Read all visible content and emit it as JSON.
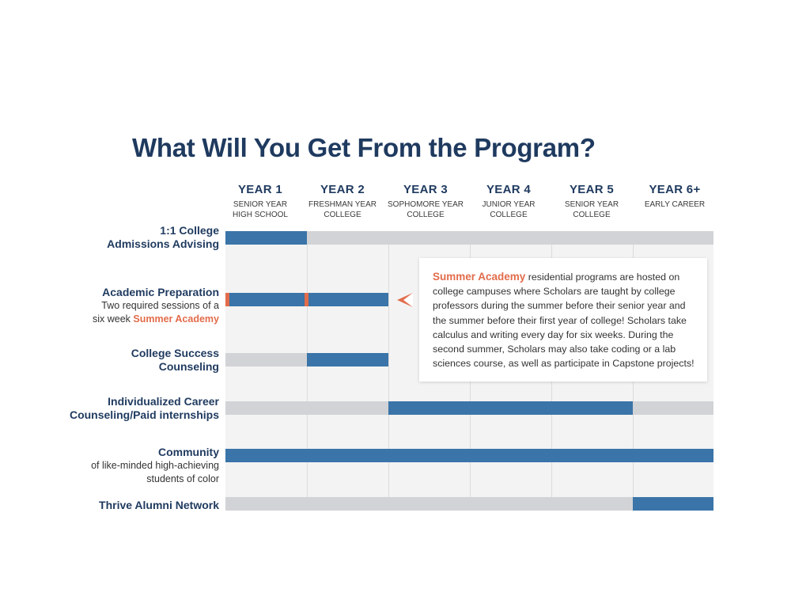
{
  "title": "What Will You Get From the Program?",
  "colors": {
    "navy": "#1f3a5f",
    "bar_blue": "#3a74a8",
    "track_gray": "#d2d3d6",
    "accent_orange": "#e26c4b",
    "grid_background": "#f3f3f3"
  },
  "years": [
    {
      "label": "YEAR 1",
      "sub1": "SENIOR YEAR",
      "sub2": "HIGH SCHOOL"
    },
    {
      "label": "YEAR 2",
      "sub1": "FRESHMAN YEAR",
      "sub2": "COLLEGE"
    },
    {
      "label": "YEAR 3",
      "sub1": "SOPHOMORE YEAR",
      "sub2": "COLLEGE"
    },
    {
      "label": "YEAR 4",
      "sub1": "JUNIOR YEAR",
      "sub2": "COLLEGE"
    },
    {
      "label": "YEAR 5",
      "sub1": "SENIOR YEAR",
      "sub2": "COLLEGE"
    },
    {
      "label": "YEAR 6+",
      "sub1": "EARLY CAREER",
      "sub2": ""
    }
  ],
  "rows": {
    "advising": {
      "line1": "1:1 College",
      "line2": "Admissions Advising",
      "active_years": [
        1,
        1
      ]
    },
    "academic": {
      "title": "Academic Preparation",
      "desc1": "Two required sessions of a",
      "desc2_prefix": "six week ",
      "desc2_accent": "Summer Academy",
      "active_years": [
        1,
        2
      ],
      "summer_academy_sessions": 2
    },
    "success": {
      "line1": "College Success",
      "line2": "Counseling",
      "active_years": [
        2,
        2
      ]
    },
    "career": {
      "line1": "Individualized Career",
      "line2": "Counseling/Paid internships",
      "active_years": [
        3,
        5
      ]
    },
    "community": {
      "title": "Community",
      "desc1": "of like-minded high-achieving",
      "desc2": "students of color",
      "active_years": [
        1,
        6
      ]
    },
    "alumni": {
      "title": "Thrive Alumni Network",
      "active_years": [
        6,
        6
      ]
    }
  },
  "callout": {
    "accent": "Summer Academy",
    "body": " residential programs are hosted on college campuses where Scholars are taught by college professors during the summer before their senior year and the summer before their first year of college! Scholars take calculus and writing every day for six weeks. During the second summer, Scholars may also take coding or a lab sciences course, as well as participate in Capstone projects!"
  }
}
